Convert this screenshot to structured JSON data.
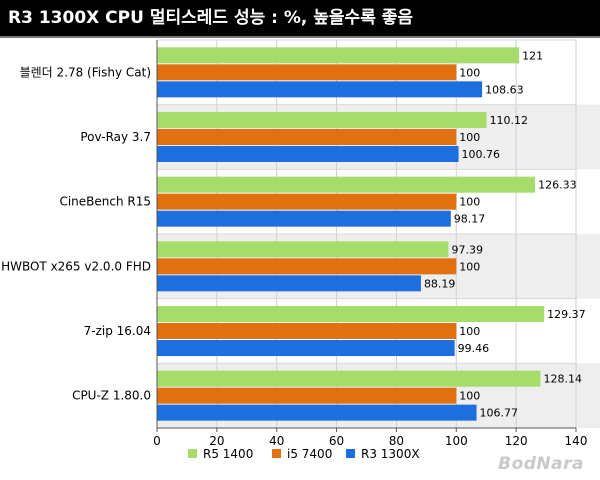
{
  "page": {
    "title": "R3 1300X CPU 멀티스레드 성능 : %, 높을수록 좋음",
    "watermark": "BodNara"
  },
  "colors": {
    "R5 1400": "#a5dc6a",
    "i5 7400": "#e07010",
    "R3 1300X": "#1d6fe0"
  },
  "chart_data": {
    "type": "bar",
    "orientation": "horizontal",
    "title": "R3 1300X CPU 멀티스레드 성능 : %, 높을수록 좋음",
    "categories": [
      "블렌더 2.78 (Fishy Cat)",
      "Pov-Ray 3.7",
      "CineBench R15",
      "HWBOT x265 v2.0.0 FHD",
      "7-zip 16.04",
      "CPU-Z 1.80.0"
    ],
    "series": [
      {
        "name": "R5 1400",
        "values": [
          121,
          110.12,
          126.33,
          97.39,
          129.37,
          128.14
        ],
        "labels": [
          "121",
          "110.12",
          "126.33",
          "97.39",
          "129.37",
          "128.14"
        ]
      },
      {
        "name": "i5 7400",
        "values": [
          100,
          100,
          100,
          100,
          100,
          100
        ],
        "labels": [
          "100",
          "100",
          "100",
          "100",
          "100",
          "100"
        ]
      },
      {
        "name": "R3 1300X",
        "values": [
          108.63,
          100.76,
          98.17,
          88.19,
          99.46,
          106.77
        ],
        "labels": [
          "108.63",
          "100.76",
          "98.17",
          "88.19",
          "99.46",
          "106.77"
        ]
      }
    ],
    "xlim": [
      0,
      140
    ],
    "xticks": [
      "0",
      "20",
      "40",
      "60",
      "80",
      "100",
      "120",
      "140"
    ],
    "xlabel": "",
    "ylabel": "",
    "grid": "vertical",
    "legend": "bottom"
  }
}
